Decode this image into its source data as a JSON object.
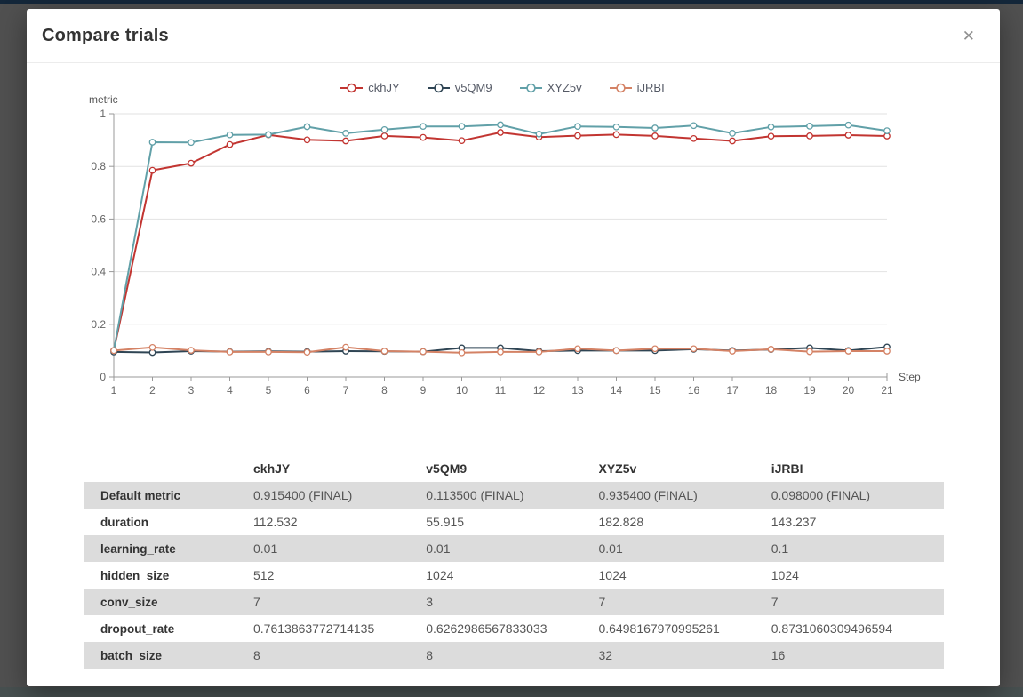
{
  "modal": {
    "title": "Compare trials",
    "close_icon": "✕"
  },
  "chart_data": {
    "type": "line",
    "title": "",
    "xlabel": "Step",
    "ylabel": "metric",
    "xlim": [
      1,
      21
    ],
    "ylim": [
      0,
      1
    ],
    "x": [
      1,
      2,
      3,
      4,
      5,
      6,
      7,
      8,
      9,
      10,
      11,
      12,
      13,
      14,
      15,
      16,
      17,
      18,
      19,
      20,
      21
    ],
    "yticks": [
      0,
      0.2,
      0.4,
      0.6,
      0.8,
      1
    ],
    "grid": true,
    "legend_position": "top",
    "marker": "hollow-circle",
    "series": [
      {
        "name": "ckhJY",
        "color": "#c23531",
        "values": [
          0.1,
          0.785,
          0.812,
          0.883,
          0.92,
          0.901,
          0.897,
          0.916,
          0.91,
          0.898,
          0.929,
          0.911,
          0.917,
          0.921,
          0.916,
          0.906,
          0.897,
          0.915,
          0.916,
          0.919,
          0.9154
        ]
      },
      {
        "name": "v5QM9",
        "color": "#2f4554",
        "values": [
          0.095,
          0.093,
          0.098,
          0.096,
          0.097,
          0.096,
          0.098,
          0.097,
          0.096,
          0.11,
          0.11,
          0.098,
          0.1,
          0.1,
          0.1,
          0.105,
          0.1,
          0.104,
          0.11,
          0.1,
          0.1135
        ]
      },
      {
        "name": "XYZ5v",
        "color": "#61a0a8",
        "values": [
          0.1,
          0.892,
          0.891,
          0.92,
          0.921,
          0.951,
          0.926,
          0.94,
          0.952,
          0.952,
          0.958,
          0.923,
          0.952,
          0.95,
          0.946,
          0.955,
          0.926,
          0.95,
          0.953,
          0.957,
          0.9354
        ]
      },
      {
        "name": "iJRBI",
        "color": "#d48265",
        "values": [
          0.1,
          0.112,
          0.101,
          0.095,
          0.095,
          0.094,
          0.113,
          0.098,
          0.096,
          0.092,
          0.095,
          0.095,
          0.107,
          0.1,
          0.107,
          0.107,
          0.098,
          0.105,
          0.096,
          0.098,
          0.098
        ]
      }
    ]
  },
  "table": {
    "columns": [
      "",
      "ckhJY",
      "v5QM9",
      "XYZ5v",
      "iJRBI"
    ],
    "rows": [
      {
        "label": "Default metric",
        "values": [
          "0.915400 (FINAL)",
          "0.113500 (FINAL)",
          "0.935400 (FINAL)",
          "0.098000 (FINAL)"
        ]
      },
      {
        "label": "duration",
        "values": [
          "112.532",
          "55.915",
          "182.828",
          "143.237"
        ]
      },
      {
        "label": "learning_rate",
        "values": [
          "0.01",
          "0.01",
          "0.01",
          "0.1"
        ]
      },
      {
        "label": "hidden_size",
        "values": [
          "512",
          "1024",
          "1024",
          "1024"
        ]
      },
      {
        "label": "conv_size",
        "values": [
          "7",
          "3",
          "7",
          "7"
        ]
      },
      {
        "label": "dropout_rate",
        "values": [
          "0.7613863772714135",
          "0.6262986567833033",
          "0.6498167970995261",
          "0.8731060309496594"
        ]
      },
      {
        "label": "batch_size",
        "values": [
          "8",
          "8",
          "32",
          "16"
        ]
      }
    ]
  },
  "colors": {
    "backdrop": "#505050",
    "page_top_strip": "#14273a",
    "row_alternate": "#dcdcdc",
    "axis_line": "#999999",
    "grid_line": "#e2e2e2",
    "tick_label": "#666666"
  }
}
